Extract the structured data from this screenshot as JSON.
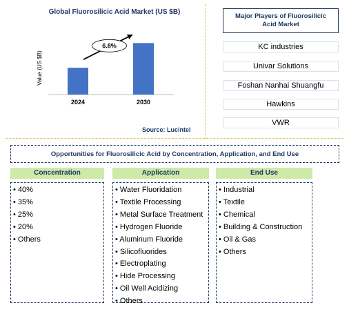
{
  "chart_data": {
    "type": "bar",
    "title": "Global Fluorosilicic Acid Market (US $B)",
    "ylabel": "Value (US $B)",
    "categories": [
      "2024",
      "2030"
    ],
    "values": [
      0.52,
      1.0
    ],
    "ylim": [
      0,
      1.3
    ],
    "bar_color": "#4472c4",
    "annotation": "6.8%",
    "source": "Source: Lucintel"
  },
  "players": {
    "title": "Major Players of Fluorosilicic Acid Market",
    "items": [
      "KC industries",
      "Univar Solutions",
      "Foshan Nanhai Shuangfu",
      "Hawkins",
      "VWR"
    ]
  },
  "opportunities": {
    "title": "Opportunities for Fluorosilicic Acid by Concentration, Application, and End Use",
    "columns": [
      {
        "heading": "Concentration",
        "items": [
          "40%",
          "35%",
          "25%",
          "20%",
          "Others"
        ]
      },
      {
        "heading": "Application",
        "items": [
          "Water Fluoridation",
          "Textile Processing",
          "Metal Surface Treatment",
          "Hydrogen Fluoride",
          "Aluminum Fluoride",
          "Silicofluorides",
          "Electroplating",
          "Hide Processing",
          "Oil Well Acidizing",
          "Others"
        ]
      },
      {
        "heading": "End Use",
        "items": [
          "Industrial",
          "Textile",
          "Chemical",
          "Building & Construction",
          "Oil & Gas",
          "Others"
        ]
      }
    ]
  },
  "colors": {
    "accent": "#1f3864",
    "header_fill": "#cdeaa8",
    "divider": "#e0c060"
  }
}
